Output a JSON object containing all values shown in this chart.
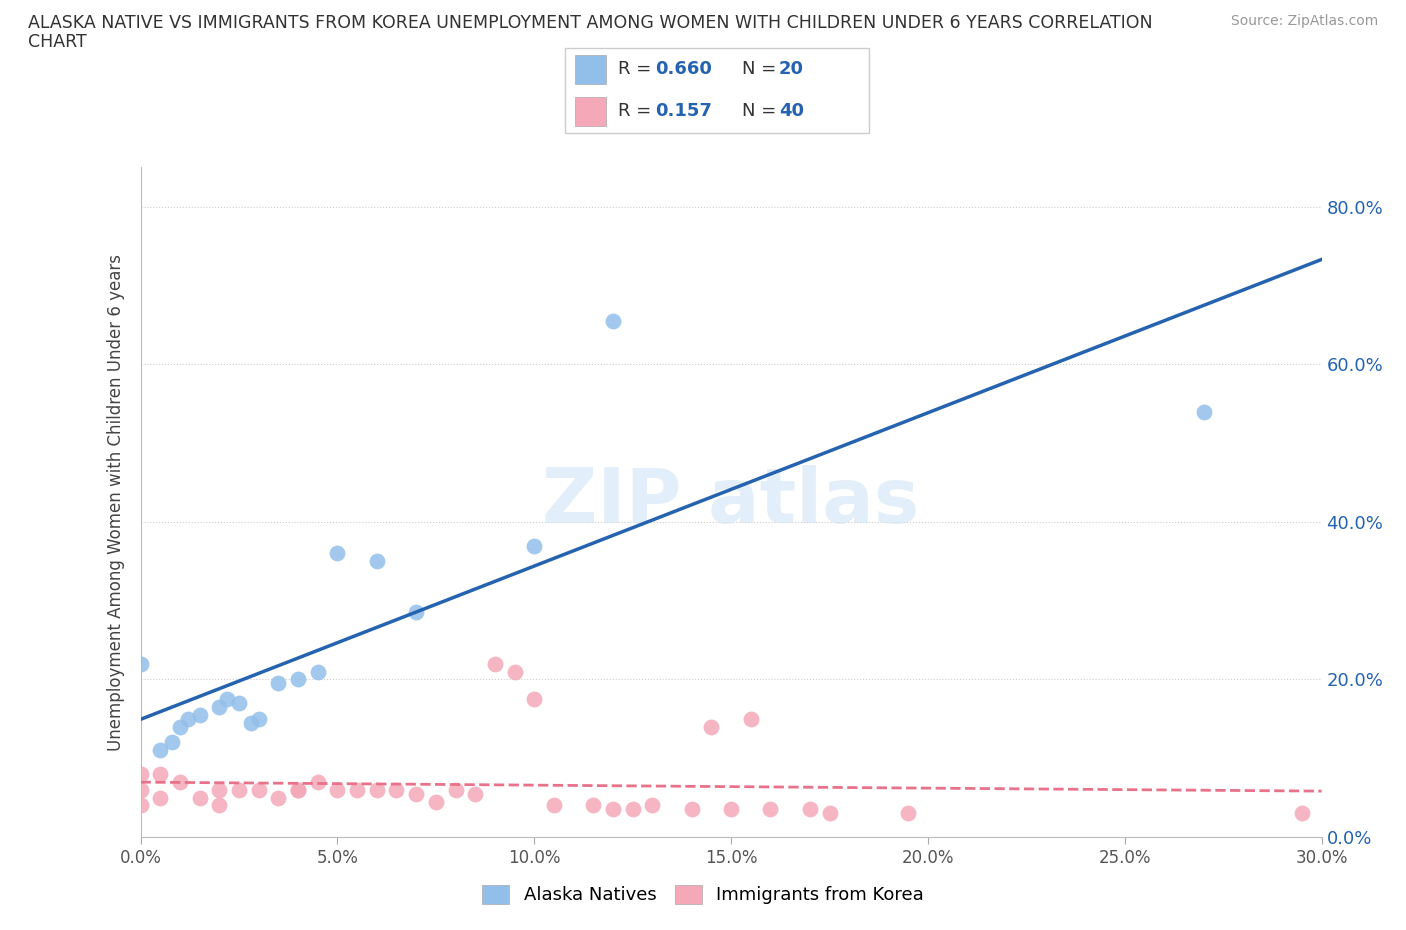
{
  "title_line1": "ALASKA NATIVE VS IMMIGRANTS FROM KOREA UNEMPLOYMENT AMONG WOMEN WITH CHILDREN UNDER 6 YEARS CORRELATION",
  "title_line2": "CHART",
  "source": "Source: ZipAtlas.com",
  "ylabel": "Unemployment Among Women with Children Under 6 years",
  "xlim": [
    0.0,
    0.3
  ],
  "ylim": [
    0.0,
    0.85
  ],
  "xticks": [
    0.0,
    0.05,
    0.1,
    0.15,
    0.2,
    0.25,
    0.3
  ],
  "yticks": [
    0.0,
    0.2,
    0.4,
    0.6,
    0.8
  ],
  "xticklabels": [
    "0.0%",
    "5.0%",
    "10.0%",
    "15.0%",
    "20.0%",
    "25.0%",
    "30.0%"
  ],
  "yticklabels": [
    "0.0%",
    "20.0%",
    "40.0%",
    "60.0%",
    "80.0%"
  ],
  "alaska_R": 0.66,
  "alaska_N": 20,
  "korea_R": 0.157,
  "korea_N": 40,
  "alaska_color": "#92bfea",
  "korea_color": "#f4a8b8",
  "alaska_line_color": "#2563b0",
  "korea_line_color": "#e8728a",
  "alaska_x": [
    0.0,
    0.005,
    0.008,
    0.01,
    0.012,
    0.015,
    0.02,
    0.022,
    0.025,
    0.028,
    0.03,
    0.035,
    0.04,
    0.045,
    0.05,
    0.06,
    0.07,
    0.1,
    0.12,
    0.27
  ],
  "alaska_y": [
    0.22,
    0.11,
    0.12,
    0.14,
    0.15,
    0.155,
    0.165,
    0.175,
    0.17,
    0.145,
    0.15,
    0.195,
    0.2,
    0.21,
    0.36,
    0.35,
    0.285,
    0.37,
    0.655,
    0.54
  ],
  "korea_x": [
    0.0,
    0.0,
    0.0,
    0.005,
    0.005,
    0.01,
    0.015,
    0.02,
    0.02,
    0.025,
    0.03,
    0.035,
    0.04,
    0.04,
    0.045,
    0.05,
    0.055,
    0.06,
    0.065,
    0.07,
    0.075,
    0.08,
    0.085,
    0.09,
    0.095,
    0.1,
    0.105,
    0.115,
    0.12,
    0.125,
    0.13,
    0.14,
    0.145,
    0.15,
    0.155,
    0.16,
    0.17,
    0.175,
    0.195,
    0.295
  ],
  "korea_y": [
    0.08,
    0.06,
    0.04,
    0.08,
    0.05,
    0.07,
    0.05,
    0.06,
    0.04,
    0.06,
    0.06,
    0.05,
    0.06,
    0.06,
    0.07,
    0.06,
    0.06,
    0.06,
    0.06,
    0.055,
    0.045,
    0.06,
    0.055,
    0.22,
    0.21,
    0.175,
    0.04,
    0.04,
    0.035,
    0.035,
    0.04,
    0.035,
    0.14,
    0.035,
    0.15,
    0.035,
    0.035,
    0.03,
    0.03,
    0.03
  ]
}
